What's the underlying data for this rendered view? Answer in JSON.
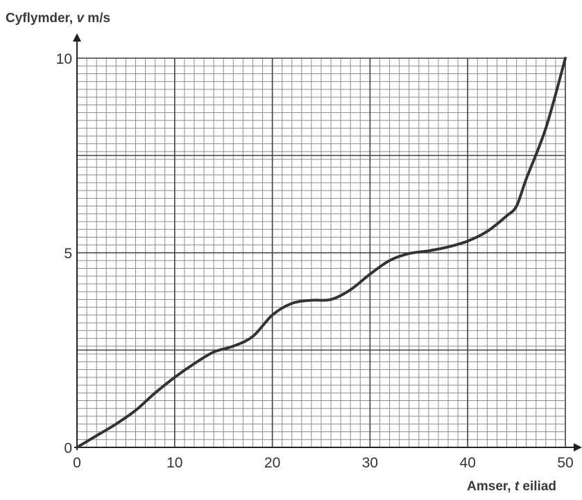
{
  "chart_data": {
    "type": "line",
    "ylabel": "Cyflymder, v m/s",
    "ylabel_parts": {
      "name": "Cyflymder, ",
      "symbol": "v",
      "unit": " m/s"
    },
    "xlabel": "Amser, t eiliad",
    "xlabel_parts": {
      "name": "Amser, ",
      "symbol": "t",
      "unit": " eiliad"
    },
    "xlim": [
      0,
      50
    ],
    "ylim": [
      0,
      10
    ],
    "x_ticks": [
      0,
      10,
      20,
      30,
      40,
      50
    ],
    "x_tick_labels": [
      "0",
      "10",
      "20",
      "30",
      "40",
      "50"
    ],
    "y_ticks": [
      0,
      5,
      10
    ],
    "y_tick_labels": [
      "0",
      "5",
      "10"
    ],
    "grid": {
      "minor_x_step": 1,
      "minor_y_step": 0.2,
      "major_x_step": 10,
      "major_y_step": 2.5
    },
    "series": [
      {
        "x": [
          0,
          2,
          4,
          6,
          8,
          10,
          12,
          14,
          16,
          18,
          20,
          22,
          24,
          26,
          28,
          30,
          32,
          34,
          36,
          38,
          40,
          42,
          44,
          45,
          46,
          48,
          50
        ],
        "y": [
          0,
          0.3,
          0.6,
          0.95,
          1.4,
          1.8,
          2.15,
          2.45,
          2.6,
          2.85,
          3.4,
          3.7,
          3.78,
          3.8,
          4.05,
          4.45,
          4.8,
          4.98,
          5.05,
          5.15,
          5.3,
          5.55,
          5.95,
          6.2,
          6.9,
          8.2,
          10.0
        ]
      }
    ]
  }
}
